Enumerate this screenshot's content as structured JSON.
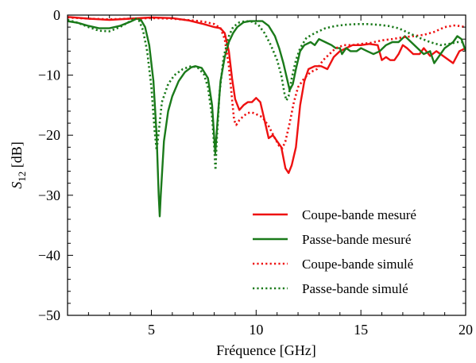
{
  "chart_data": {
    "type": "line",
    "xlabel": "Fréquence [GHz]",
    "ylabel_main": "S",
    "ylabel_sub": "12",
    "ylabel_unit": " [dB]",
    "xlim": [
      1,
      20
    ],
    "ylim": [
      -50,
      0
    ],
    "xticks": [
      5,
      10,
      15,
      20
    ],
    "yticks": [
      0,
      -10,
      -20,
      -30,
      -40,
      -50
    ],
    "xtick_labels": [
      "5",
      "10",
      "15",
      "20"
    ],
    "ytick_labels": [
      "0",
      "−10",
      "−20",
      "−30",
      "−40",
      "−50"
    ],
    "grid": false,
    "legend_position": "lower-right",
    "series": [
      {
        "name": "Coupe-bande mesuré",
        "color": "#ee1111",
        "style": "solid",
        "points": [
          [
            1,
            -0.3
          ],
          [
            2,
            -0.6
          ],
          [
            3,
            -0.8
          ],
          [
            4,
            -0.6
          ],
          [
            5,
            -0.4
          ],
          [
            6,
            -0.5
          ],
          [
            6.8,
            -0.9
          ],
          [
            7.5,
            -1.5
          ],
          [
            8.0,
            -2.0
          ],
          [
            8.3,
            -2.2
          ],
          [
            8.5,
            -3.0
          ],
          [
            8.7,
            -6.0
          ],
          [
            8.85,
            -10.5
          ],
          [
            9.0,
            -14.0
          ],
          [
            9.2,
            -15.8
          ],
          [
            9.4,
            -15.0
          ],
          [
            9.6,
            -14.5
          ],
          [
            9.8,
            -14.5
          ],
          [
            10.0,
            -13.8
          ],
          [
            10.2,
            -14.5
          ],
          [
            10.4,
            -17.5
          ],
          [
            10.6,
            -20.5
          ],
          [
            10.8,
            -20.0
          ],
          [
            11.0,
            -21.0
          ],
          [
            11.2,
            -22.0
          ],
          [
            11.4,
            -25.5
          ],
          [
            11.55,
            -26.3
          ],
          [
            11.7,
            -25.0
          ],
          [
            11.9,
            -22.0
          ],
          [
            12.1,
            -15.0
          ],
          [
            12.3,
            -11.0
          ],
          [
            12.5,
            -9.0
          ],
          [
            12.8,
            -8.5
          ],
          [
            13.1,
            -8.5
          ],
          [
            13.4,
            -9.0
          ],
          [
            13.7,
            -7.0
          ],
          [
            14.0,
            -6.0
          ],
          [
            14.3,
            -5.5
          ],
          [
            14.6,
            -5.0
          ],
          [
            15.0,
            -5.0
          ],
          [
            15.4,
            -4.8
          ],
          [
            15.8,
            -5.0
          ],
          [
            16.0,
            -7.5
          ],
          [
            16.2,
            -7.0
          ],
          [
            16.4,
            -7.5
          ],
          [
            16.6,
            -7.5
          ],
          [
            16.8,
            -6.5
          ],
          [
            17.0,
            -5.0
          ],
          [
            17.2,
            -5.5
          ],
          [
            17.5,
            -6.5
          ],
          [
            17.8,
            -6.5
          ],
          [
            18.0,
            -5.5
          ],
          [
            18.3,
            -6.8
          ],
          [
            18.6,
            -6.0
          ],
          [
            19.0,
            -7.0
          ],
          [
            19.4,
            -8.0
          ],
          [
            19.7,
            -6.0
          ],
          [
            20,
            -5.5
          ]
        ]
      },
      {
        "name": "Passe-bande mesuré",
        "color": "#1a7a1a",
        "style": "solid",
        "points": [
          [
            1,
            -1.0
          ],
          [
            1.5,
            -1.3
          ],
          [
            2,
            -1.8
          ],
          [
            2.5,
            -2.2
          ],
          [
            3,
            -2.2
          ],
          [
            3.5,
            -1.8
          ],
          [
            4,
            -1.1
          ],
          [
            4.3,
            -0.6
          ],
          [
            4.5,
            -0.8
          ],
          [
            4.7,
            -2.0
          ],
          [
            4.9,
            -5.0
          ],
          [
            5.1,
            -11.0
          ],
          [
            5.25,
            -20.0
          ],
          [
            5.35,
            -30.0
          ],
          [
            5.4,
            -33.5
          ],
          [
            5.45,
            -30.0
          ],
          [
            5.6,
            -21.0
          ],
          [
            5.8,
            -16.0
          ],
          [
            6.0,
            -13.5
          ],
          [
            6.3,
            -11.0
          ],
          [
            6.6,
            -9.5
          ],
          [
            6.9,
            -8.7
          ],
          [
            7.1,
            -8.5
          ],
          [
            7.4,
            -8.8
          ],
          [
            7.7,
            -10.5
          ],
          [
            7.9,
            -15.0
          ],
          [
            8.05,
            -23.0
          ],
          [
            8.15,
            -18.0
          ],
          [
            8.3,
            -11.0
          ],
          [
            8.5,
            -7.0
          ],
          [
            8.7,
            -4.5
          ],
          [
            8.9,
            -3.0
          ],
          [
            9.1,
            -2.0
          ],
          [
            9.4,
            -1.2
          ],
          [
            9.7,
            -1.0
          ],
          [
            10.0,
            -1.0
          ],
          [
            10.3,
            -1.0
          ],
          [
            10.6,
            -1.8
          ],
          [
            10.9,
            -3.5
          ],
          [
            11.1,
            -5.5
          ],
          [
            11.3,
            -8.0
          ],
          [
            11.5,
            -11.0
          ],
          [
            11.6,
            -12.5
          ],
          [
            11.75,
            -11.5
          ],
          [
            11.9,
            -9.0
          ],
          [
            12.1,
            -6.0
          ],
          [
            12.3,
            -5.0
          ],
          [
            12.6,
            -4.5
          ],
          [
            12.8,
            -5.0
          ],
          [
            13.0,
            -4.0
          ],
          [
            13.3,
            -4.5
          ],
          [
            13.6,
            -5.0
          ],
          [
            13.8,
            -5.5
          ],
          [
            14.0,
            -5.5
          ],
          [
            14.1,
            -6.5
          ],
          [
            14.3,
            -5.5
          ],
          [
            14.5,
            -6.0
          ],
          [
            14.8,
            -6.0
          ],
          [
            15.0,
            -5.5
          ],
          [
            15.3,
            -6.0
          ],
          [
            15.6,
            -6.5
          ],
          [
            15.9,
            -6.0
          ],
          [
            16.2,
            -5.0
          ],
          [
            16.5,
            -4.5
          ],
          [
            16.8,
            -4.5
          ],
          [
            17.1,
            -3.5
          ],
          [
            17.4,
            -4.5
          ],
          [
            17.7,
            -5.5
          ],
          [
            18.0,
            -6.5
          ],
          [
            18.3,
            -6.0
          ],
          [
            18.5,
            -8.0
          ],
          [
            18.8,
            -6.5
          ],
          [
            19.0,
            -5.5
          ],
          [
            19.2,
            -5.0
          ],
          [
            19.4,
            -4.5
          ],
          [
            19.6,
            -3.5
          ],
          [
            19.8,
            -4.0
          ],
          [
            20,
            -6.0
          ]
        ]
      },
      {
        "name": "Coupe-bande simulé",
        "color": "#ee1111",
        "style": "dotted",
        "points": [
          [
            1,
            -0.4
          ],
          [
            2,
            -0.6
          ],
          [
            3,
            -0.7
          ],
          [
            4,
            -0.6
          ],
          [
            5,
            -0.5
          ],
          [
            6,
            -0.6
          ],
          [
            7,
            -0.9
          ],
          [
            7.5,
            -1.1
          ],
          [
            8.0,
            -1.5
          ],
          [
            8.3,
            -2.2
          ],
          [
            8.5,
            -4.0
          ],
          [
            8.7,
            -8.5
          ],
          [
            8.85,
            -14.0
          ],
          [
            8.95,
            -17.5
          ],
          [
            9.05,
            -18.3
          ],
          [
            9.2,
            -17.5
          ],
          [
            9.4,
            -16.8
          ],
          [
            9.6,
            -16.3
          ],
          [
            9.8,
            -16.2
          ],
          [
            10.0,
            -16.5
          ],
          [
            10.3,
            -17.0
          ],
          [
            10.6,
            -18.5
          ],
          [
            10.9,
            -20.5
          ],
          [
            11.1,
            -21.8
          ],
          [
            11.25,
            -22.2
          ],
          [
            11.4,
            -21.0
          ],
          [
            11.6,
            -18.0
          ],
          [
            11.8,
            -14.5
          ],
          [
            12.0,
            -12.0
          ],
          [
            12.3,
            -10.5
          ],
          [
            12.6,
            -9.5
          ],
          [
            12.9,
            -9.0
          ],
          [
            13.2,
            -7.5
          ],
          [
            13.5,
            -6.5
          ],
          [
            13.8,
            -5.5
          ],
          [
            14.2,
            -5.0
          ],
          [
            14.6,
            -5.0
          ],
          [
            15.0,
            -4.8
          ],
          [
            15.5,
            -4.6
          ],
          [
            16.0,
            -4.2
          ],
          [
            16.5,
            -4.0
          ],
          [
            17.0,
            -3.7
          ],
          [
            17.5,
            -3.5
          ],
          [
            18.0,
            -3.3
          ],
          [
            18.5,
            -2.8
          ],
          [
            19.0,
            -2.0
          ],
          [
            19.5,
            -1.7
          ],
          [
            20,
            -2.0
          ]
        ]
      },
      {
        "name": "Passe-bande simulé",
        "color": "#1a7a1a",
        "style": "dotted",
        "points": [
          [
            1,
            -0.8
          ],
          [
            1.5,
            -1.3
          ],
          [
            2,
            -2.0
          ],
          [
            2.5,
            -2.6
          ],
          [
            3,
            -2.7
          ],
          [
            3.5,
            -2.0
          ],
          [
            4,
            -1.0
          ],
          [
            4.2,
            -0.5
          ],
          [
            4.4,
            -0.8
          ],
          [
            4.6,
            -2.5
          ],
          [
            4.8,
            -6.0
          ],
          [
            5.0,
            -12.0
          ],
          [
            5.15,
            -19.0
          ],
          [
            5.25,
            -22.5
          ],
          [
            5.35,
            -19.5
          ],
          [
            5.5,
            -14.5
          ],
          [
            5.8,
            -11.5
          ],
          [
            6.1,
            -10.0
          ],
          [
            6.5,
            -9.0
          ],
          [
            6.9,
            -8.5
          ],
          [
            7.2,
            -8.7
          ],
          [
            7.5,
            -9.8
          ],
          [
            7.7,
            -12.0
          ],
          [
            7.9,
            -17.0
          ],
          [
            8.0,
            -22.0
          ],
          [
            8.06,
            -25.8
          ],
          [
            8.12,
            -21.0
          ],
          [
            8.25,
            -13.0
          ],
          [
            8.45,
            -7.0
          ],
          [
            8.7,
            -3.5
          ],
          [
            8.9,
            -2.0
          ],
          [
            9.2,
            -1.2
          ],
          [
            9.5,
            -1.0
          ],
          [
            9.8,
            -1.1
          ],
          [
            10.1,
            -1.6
          ],
          [
            10.4,
            -3.0
          ],
          [
            10.7,
            -5.0
          ],
          [
            11.0,
            -7.5
          ],
          [
            11.2,
            -10.0
          ],
          [
            11.35,
            -13.0
          ],
          [
            11.45,
            -14.2
          ],
          [
            11.55,
            -13.5
          ],
          [
            11.7,
            -10.5
          ],
          [
            11.9,
            -7.5
          ],
          [
            12.1,
            -5.5
          ],
          [
            12.4,
            -3.8
          ],
          [
            12.8,
            -3.0
          ],
          [
            13.3,
            -2.2
          ],
          [
            13.8,
            -1.8
          ],
          [
            14.3,
            -1.6
          ],
          [
            14.8,
            -1.5
          ],
          [
            15.3,
            -1.5
          ],
          [
            15.8,
            -1.6
          ],
          [
            16.3,
            -1.8
          ],
          [
            16.8,
            -2.2
          ],
          [
            17.3,
            -3.0
          ],
          [
            17.8,
            -3.8
          ],
          [
            18.3,
            -4.5
          ],
          [
            18.8,
            -5.0
          ],
          [
            19.2,
            -4.8
          ],
          [
            19.6,
            -4.5
          ],
          [
            20,
            -4.5
          ]
        ]
      }
    ]
  }
}
